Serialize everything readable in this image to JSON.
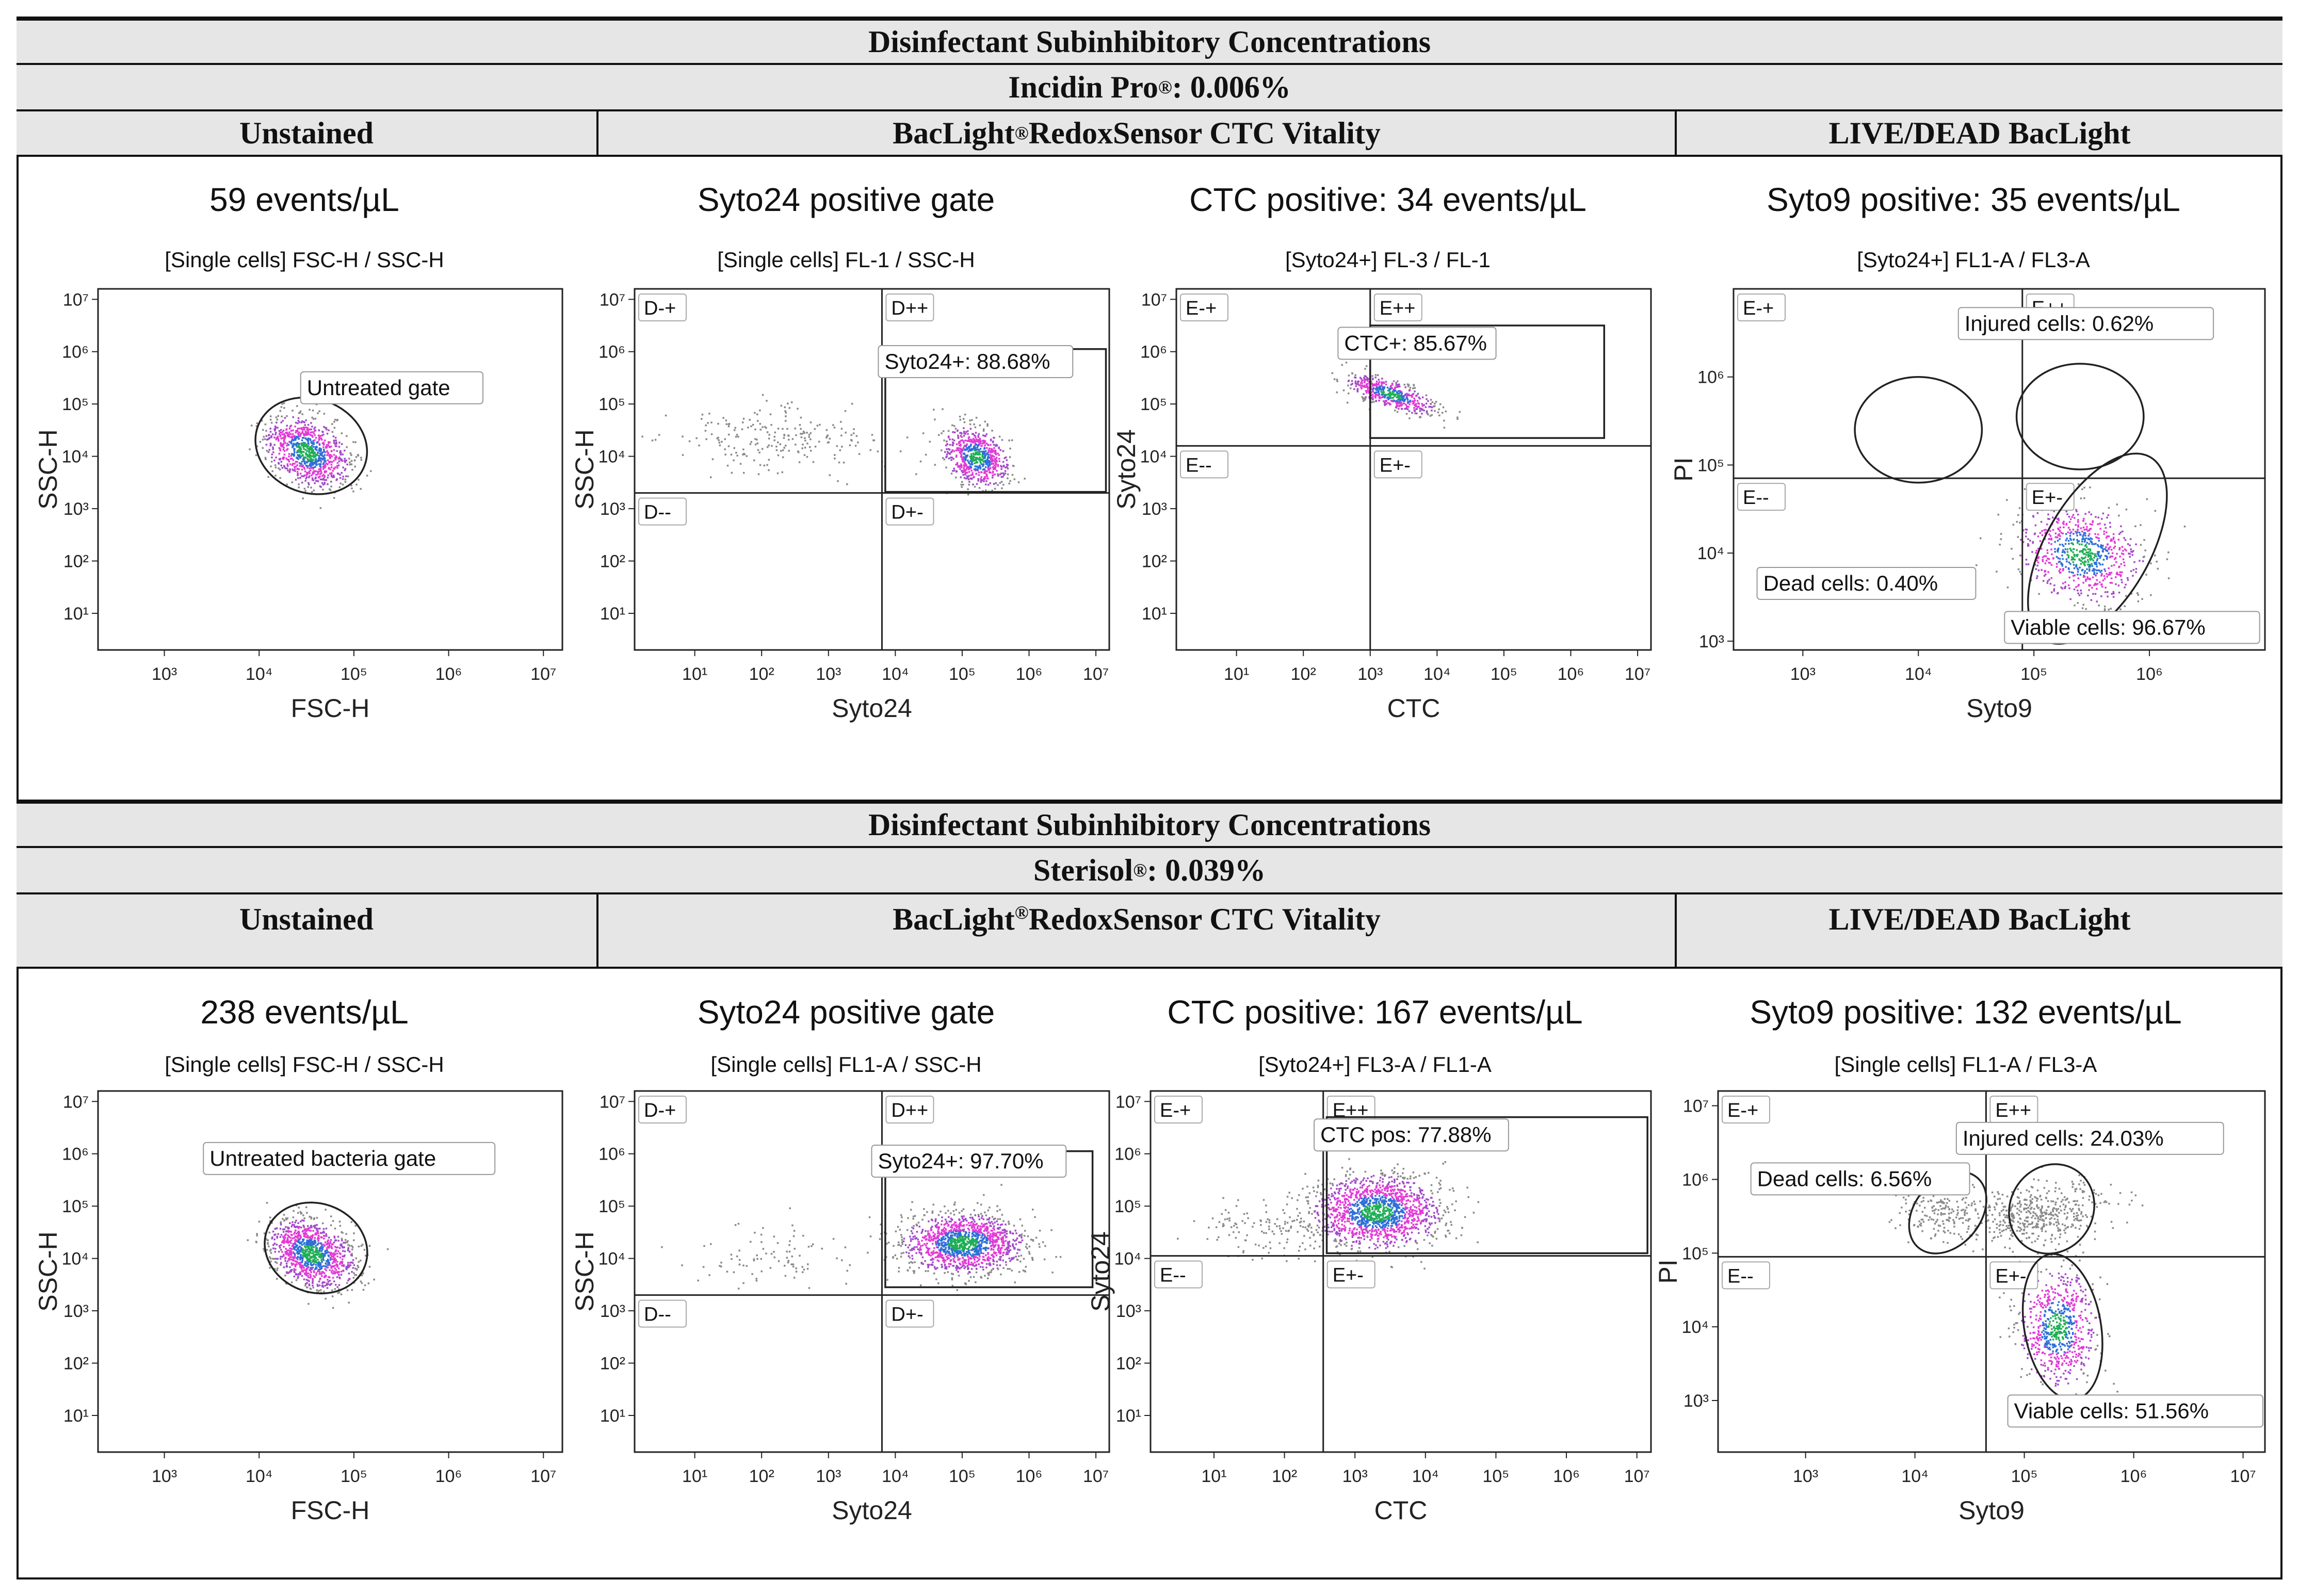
{
  "top": {
    "title": "Disinfectant Subinhibitory Concentrations",
    "disinfectant": "Incidin Pro",
    "reg": "®",
    "concentration": ": 0.006%",
    "col_unstained": "Unstained",
    "col_ctc_a": "BacLight",
    "col_ctc_reg": "®",
    "col_ctc_b": "RedoxSensor CTC Vitality",
    "col_livedead": "LIVE/DEAD BacLight"
  },
  "bottom": {
    "title": "Disinfectant Subinhibitory Concentrations",
    "disinfectant": "Sterisol",
    "reg": "®",
    "concentration": ": 0.039%",
    "col_unstained": "Unstained",
    "col_ctc_a": "BacLight",
    "col_ctc_reg": "®",
    "col_ctc_b": "RedoxSensor CTC Vitality",
    "col_livedead": "LIVE/DEAD BacLight"
  },
  "chart_data": [
    {
      "id": "top-unstained",
      "type": "scatter",
      "row": 0,
      "col": 0,
      "title": "59 events/µL",
      "gate_title": "[Single cells] FSC-H / SSC-H",
      "xlabel": "FSC-H",
      "ylabel": "SSC-H",
      "xlim": [
        2.3,
        7.2
      ],
      "ylim": [
        0.3,
        7.2
      ],
      "xticks": [
        "10³",
        "10⁴",
        "10⁵",
        "10⁶",
        "10⁷"
      ],
      "xtick_vals": [
        3,
        4,
        5,
        6,
        7
      ],
      "yticks": [
        "10¹",
        "10²",
        "10³",
        "10⁴",
        "10⁵",
        "10⁶",
        "10⁷"
      ],
      "ytick_vals": [
        1,
        2,
        3,
        4,
        5,
        6,
        7
      ],
      "quadrants": null,
      "clusters": [
        {
          "cx": 4.5,
          "cy": 4.1,
          "sx": 0.2,
          "sy": 0.35,
          "rot": 20,
          "n": 900,
          "core": true
        }
      ],
      "gates": [
        {
          "type": "ellipse",
          "cx": 4.55,
          "cy": 4.2,
          "rx": 0.6,
          "ry": 0.9,
          "rot": 20
        }
      ],
      "labels": [
        {
          "text": "Untreated gate",
          "x": 5.4,
          "y": 5.3
        }
      ]
    },
    {
      "id": "top-syto24",
      "type": "scatter",
      "row": 0,
      "col": 1,
      "title": "Syto24 positive gate",
      "gate_title": "[Single cells] FL-1 / SSC-H",
      "xlabel": "Syto24",
      "ylabel": "SSC-H",
      "xlim": [
        0.1,
        7.2
      ],
      "ylim": [
        0.3,
        7.2
      ],
      "xticks": [
        "10¹",
        "10²",
        "10³",
        "10⁴",
        "10⁵",
        "10⁶",
        "10⁷"
      ],
      "xtick_vals": [
        1,
        2,
        3,
        4,
        5,
        6,
        7
      ],
      "yticks": [
        "10¹",
        "10²",
        "10³",
        "10⁴",
        "10⁵",
        "10⁶",
        "10⁷"
      ],
      "ytick_vals": [
        1,
        2,
        3,
        4,
        5,
        6,
        7
      ],
      "quadrants": {
        "x": 3.8,
        "y": 3.3,
        "names": [
          "D-+",
          "D++",
          "D--",
          "D+-"
        ]
      },
      "clusters": [
        {
          "cx": 2.1,
          "cy": 4.3,
          "sx": 0.75,
          "sy": 0.3,
          "rot": 0,
          "n": 220,
          "core": false
        },
        {
          "cx": 5.2,
          "cy": 4.0,
          "sx": 0.22,
          "sy": 0.3,
          "rot": 30,
          "n": 700,
          "core": true
        }
      ],
      "gates": [
        {
          "type": "rect",
          "x0": 3.85,
          "x1": 7.15,
          "y0": 3.32,
          "y1": 6.05
        }
      ],
      "labels": [
        {
          "text": "Syto24+: 88.68%",
          "x": 5.2,
          "y": 5.8
        }
      ]
    },
    {
      "id": "top-ctc",
      "type": "scatter",
      "row": 0,
      "col": 2,
      "title": "CTC positive: 34 events/µL",
      "gate_title": "[Syto24+] FL-3 / FL-1",
      "xlabel": "CTC",
      "ylabel": "Syto24",
      "xlim": [
        0.1,
        7.2
      ],
      "ylim": [
        0.3,
        7.2
      ],
      "xticks": [
        "10¹",
        "10²",
        "10³",
        "10⁴",
        "10⁵",
        "10⁶",
        "10⁷"
      ],
      "xtick_vals": [
        1,
        2,
        3,
        4,
        5,
        6,
        7
      ],
      "yticks": [
        "10¹",
        "10²",
        "10³",
        "10⁴",
        "10⁵",
        "10⁶",
        "10⁷"
      ],
      "ytick_vals": [
        1,
        2,
        3,
        4,
        5,
        6,
        7
      ],
      "quadrants": {
        "x": 3.0,
        "y": 4.2,
        "names": [
          "E-+",
          "E++",
          "E--",
          "E+-"
        ]
      },
      "clusters": [
        {
          "cx": 3.3,
          "cy": 5.2,
          "sx": 0.35,
          "sy": 0.12,
          "rot": -25,
          "n": 500,
          "core": true
        }
      ],
      "gates": [
        {
          "type": "rect",
          "x0": 3.0,
          "x1": 6.5,
          "y0": 4.35,
          "y1": 6.5
        }
      ],
      "labels": [
        {
          "text": "CTC+: 85.67%",
          "x": 3.7,
          "y": 6.15
        }
      ]
    },
    {
      "id": "top-livedead",
      "type": "scatter",
      "row": 0,
      "col": 3,
      "title": "Syto9 positive: 35 events/µL",
      "gate_title": "[Syto24+] FL1-A / FL3-A",
      "xlabel": "Syto9",
      "ylabel": "PI",
      "xlim": [
        2.4,
        7.0
      ],
      "ylim": [
        2.9,
        7.0
      ],
      "xticks": [
        "10³",
        "10⁴",
        "10⁵",
        "10⁶"
      ],
      "xtick_vals": [
        3,
        4,
        5,
        6
      ],
      "yticks": [
        "10³",
        "10⁴",
        "10⁵",
        "10⁶"
      ],
      "ytick_vals": [
        3,
        4,
        5,
        6
      ],
      "quadrants": {
        "x": 4.9,
        "y": 4.85,
        "names": [
          "E-+",
          "E++",
          "E--",
          "E+-"
        ]
      },
      "clusters": [
        {
          "cx": 5.4,
          "cy": 4.0,
          "sx": 0.25,
          "sy": 0.3,
          "rot": 40,
          "n": 750,
          "core": true
        }
      ],
      "gates": [
        {
          "type": "ellipse",
          "cx": 4.0,
          "cy": 5.4,
          "rx": 0.55,
          "ry": 0.6,
          "rot": 0
        },
        {
          "type": "ellipse",
          "cx": 5.4,
          "cy": 5.55,
          "rx": 0.55,
          "ry": 0.6,
          "rot": 0
        },
        {
          "type": "ellipse",
          "cx": 5.55,
          "cy": 4.05,
          "rx": 0.45,
          "ry": 1.2,
          "rot": 30
        }
      ],
      "labels": [
        {
          "text": "Injured cells: 0.62%",
          "x": 5.45,
          "y": 6.6
        },
        {
          "text": "Dead cells: 0.40%",
          "x": 3.55,
          "y": 3.65
        },
        {
          "text": "Viable cells: 96.67%",
          "x": 5.85,
          "y": 3.15
        }
      ]
    },
    {
      "id": "bottom-unstained",
      "type": "scatter",
      "row": 1,
      "col": 0,
      "title": "238 events/µL",
      "gate_title": "[Single cells] FSC-H / SSC-H",
      "xlabel": "FSC-H",
      "ylabel": "SSC-H",
      "xlim": [
        2.3,
        7.2
      ],
      "ylim": [
        0.3,
        7.2
      ],
      "xticks": [
        "10³",
        "10⁴",
        "10⁵",
        "10⁶",
        "10⁷"
      ],
      "xtick_vals": [
        3,
        4,
        5,
        6,
        7
      ],
      "yticks": [
        "10¹",
        "10²",
        "10³",
        "10⁴",
        "10⁵",
        "10⁶",
        "10⁷"
      ],
      "ytick_vals": [
        1,
        2,
        3,
        4,
        5,
        6,
        7
      ],
      "quadrants": null,
      "clusters": [
        {
          "cx": 4.55,
          "cy": 4.1,
          "sx": 0.2,
          "sy": 0.35,
          "rot": 20,
          "n": 1100,
          "core": true
        }
      ],
      "gates": [
        {
          "type": "ellipse",
          "cx": 4.6,
          "cy": 4.2,
          "rx": 0.55,
          "ry": 0.85,
          "rot": 20
        }
      ],
      "labels": [
        {
          "text": "Untreated bacteria gate",
          "x": 4.95,
          "y": 5.9
        }
      ]
    },
    {
      "id": "bottom-syto24",
      "type": "scatter",
      "row": 1,
      "col": 1,
      "title": "Syto24 positive gate",
      "gate_title": "[Single cells] FL1-A / SSC-H",
      "xlabel": "Syto24",
      "ylabel": "SSC-H",
      "xlim": [
        0.1,
        7.2
      ],
      "ylim": [
        0.3,
        7.2
      ],
      "xticks": [
        "10¹",
        "10²",
        "10³",
        "10⁴",
        "10⁵",
        "10⁶",
        "10⁷"
      ],
      "xtick_vals": [
        1,
        2,
        3,
        4,
        5,
        6,
        7
      ],
      "yticks": [
        "10¹",
        "10²",
        "10³",
        "10⁴",
        "10⁵",
        "10⁶",
        "10⁷"
      ],
      "ytick_vals": [
        1,
        2,
        3,
        4,
        5,
        6,
        7
      ],
      "quadrants": {
        "x": 3.8,
        "y": 3.3,
        "names": [
          "D-+",
          "D++",
          "D--",
          "D+-"
        ]
      },
      "clusters": [
        {
          "cx": 2.2,
          "cy": 4.1,
          "sx": 0.75,
          "sy": 0.3,
          "rot": 0,
          "n": 90,
          "core": false
        },
        {
          "cx": 5.0,
          "cy": 4.3,
          "sx": 0.45,
          "sy": 0.28,
          "rot": 0,
          "n": 1400,
          "core": true
        }
      ],
      "gates": [
        {
          "type": "rect",
          "x0": 3.85,
          "x1": 6.95,
          "y0": 3.45,
          "y1": 6.05
        }
      ],
      "labels": [
        {
          "text": "Syto24+: 97.70%",
          "x": 5.1,
          "y": 5.85
        }
      ]
    },
    {
      "id": "bottom-ctc",
      "type": "scatter",
      "row": 1,
      "col": 2,
      "title": "CTC positive: 167 events/µL",
      "gate_title": "[Syto24+] FL3-A / FL1-A",
      "xlabel": "CTC",
      "ylabel": "Syto24",
      "xlim": [
        0.1,
        7.2
      ],
      "ylim": [
        0.3,
        7.2
      ],
      "xticks": [
        "10¹",
        "10²",
        "10³",
        "10⁴",
        "10⁵",
        "10⁶",
        "10⁷"
      ],
      "xtick_vals": [
        1,
        2,
        3,
        4,
        5,
        6,
        7
      ],
      "yticks": [
        "10¹",
        "10²",
        "10³",
        "10⁴",
        "10⁵",
        "10⁶",
        "10⁷"
      ],
      "ytick_vals": [
        1,
        2,
        3,
        4,
        5,
        6,
        7
      ],
      "quadrants": {
        "x": 2.55,
        "y": 4.05,
        "names": [
          "E-+",
          "E++",
          "E--",
          "E+-"
        ]
      },
      "clusters": [
        {
          "cx": 3.3,
          "cy": 4.9,
          "sx": 0.45,
          "sy": 0.35,
          "rot": 0,
          "n": 1500,
          "core": true
        },
        {
          "cx": 1.7,
          "cy": 4.6,
          "sx": 0.5,
          "sy": 0.25,
          "rot": 0,
          "n": 120,
          "core": false
        }
      ],
      "gates": [
        {
          "type": "rect",
          "x0": 2.6,
          "x1": 7.15,
          "y0": 4.1,
          "y1": 6.7
        }
      ],
      "labels": [
        {
          "text": "CTC pos: 77.88%",
          "x": 3.8,
          "y": 6.35
        }
      ]
    },
    {
      "id": "bottom-livedead",
      "type": "scatter",
      "row": 1,
      "col": 3,
      "title": "Syto9 positive: 132 events/µL",
      "gate_title": "[Single cells] FL1-A / FL3-A",
      "xlabel": "Syto9",
      "ylabel": "PI",
      "xlim": [
        2.2,
        7.2
      ],
      "ylim": [
        2.3,
        7.2
      ],
      "xticks": [
        "10³",
        "10⁴",
        "10⁵",
        "10⁶",
        "10⁷"
      ],
      "xtick_vals": [
        3,
        4,
        5,
        6,
        7
      ],
      "yticks": [
        "10³",
        "10⁴",
        "10⁵",
        "10⁶",
        "10⁷"
      ],
      "ytick_vals": [
        3,
        4,
        5,
        6,
        7
      ],
      "quadrants": {
        "x": 4.65,
        "y": 4.95,
        "names": [
          "E-+",
          "E++",
          "E--",
          "E+-"
        ]
      },
      "clusters": [
        {
          "cx": 5.15,
          "cy": 5.55,
          "sx": 0.3,
          "sy": 0.2,
          "rot": 20,
          "n": 450,
          "core": false
        },
        {
          "cx": 4.25,
          "cy": 5.55,
          "sx": 0.18,
          "sy": 0.2,
          "rot": 45,
          "n": 180,
          "core": false
        },
        {
          "cx": 5.3,
          "cy": 4.0,
          "sx": 0.18,
          "sy": 0.4,
          "rot": 0,
          "n": 700,
          "core": true
        }
      ],
      "gates": [
        {
          "type": "ellipse",
          "cx": 4.3,
          "cy": 5.55,
          "rx": 0.3,
          "ry": 0.62,
          "rot": 40
        },
        {
          "type": "ellipse",
          "cx": 5.25,
          "cy": 5.6,
          "rx": 0.38,
          "ry": 0.62,
          "rot": 30
        },
        {
          "type": "ellipse",
          "cx": 5.35,
          "cy": 4.0,
          "rx": 0.35,
          "ry": 1.0,
          "rot": -10
        }
      ],
      "labels": [
        {
          "text": "Injured cells: 24.03%",
          "x": 5.6,
          "y": 6.55
        },
        {
          "text": "Dead cells: 6.56%",
          "x": 3.5,
          "y": 6.0
        },
        {
          "text": "Viable cells: 51.56%",
          "x": 6.25,
          "y": 2.85
        }
      ]
    }
  ]
}
